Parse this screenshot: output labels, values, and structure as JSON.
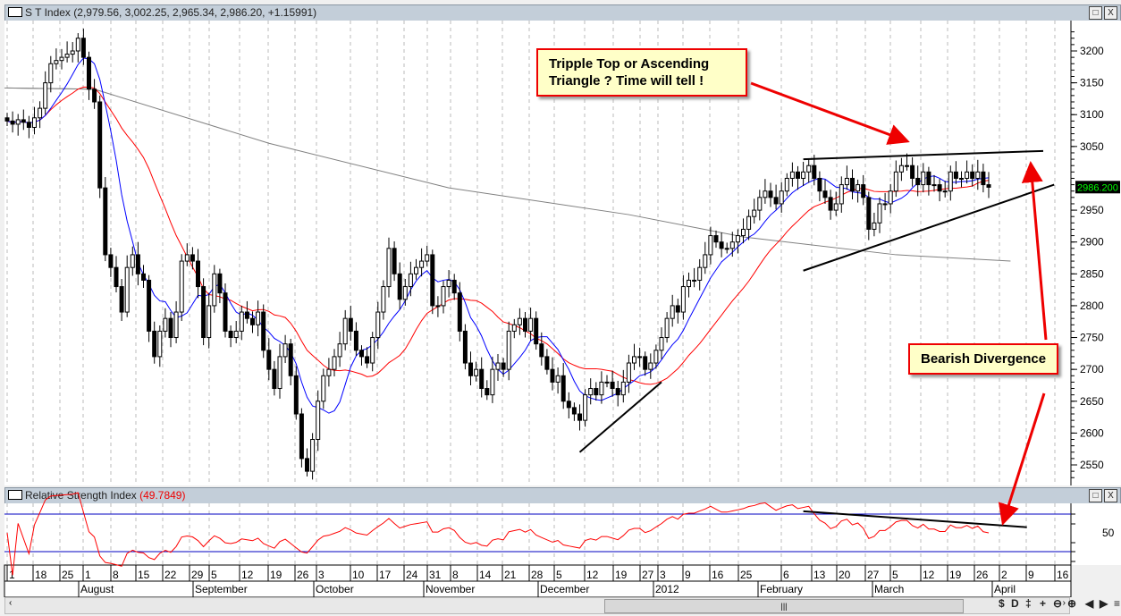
{
  "window": {
    "title": "S T Index",
    "ohlc_readout": "(2,979.56, 3,002.25, 2,965.34, 2,986.20, +1.15991)",
    "restore_label": "□",
    "close_label": "X"
  },
  "rsi_panel": {
    "title": "Relative Strength Index",
    "value": "(49.7849)",
    "axis_label": "50",
    "levels": [
      30,
      70
    ]
  },
  "annotations": {
    "top": "Tripple Top or Ascending Triangle ?  Time will tell !",
    "divergence": "Bearish Divergence"
  },
  "toolbar": {
    "icons": [
      "dollar-icon",
      "d-icon",
      "vertical-zoom-icon",
      "crosshair-icon",
      "zoom-out-icon",
      "zoom-in-icon",
      "scroll-left-icon",
      "scroll-right-icon",
      "menu-icon"
    ],
    "glyphs": [
      "$",
      "D",
      "‡",
      "+",
      "⊖",
      "⊕",
      "◀",
      "▶",
      "≡"
    ],
    "thumb_grip": "|||"
  },
  "colors": {
    "candle": "#000000",
    "ma_fast": "#0000ff",
    "ma_slow": "#ff0000",
    "ma_long": "#808080",
    "rsi": "#ff0000",
    "rsi_levels": "#0000c0",
    "last_price_bg": "#000000",
    "last_price_fg": "#00ff00",
    "annotation_border": "#ff0000",
    "annotation_bg": "#ffffc8"
  },
  "chart_data": {
    "type": "candlestick",
    "title": "S T Index",
    "ylim": [
      2520,
      3240
    ],
    "y_ticks": [
      "3200",
      "3150",
      "3100",
      "3050",
      "2950",
      "2900",
      "2850",
      "2800",
      "2750",
      "2700",
      "2650",
      "2600",
      "2550"
    ],
    "last_price": "2986.200",
    "day_ticks": [
      "1",
      "18",
      "25",
      "1",
      "8",
      "15",
      "22",
      "29",
      "5",
      "12",
      "19",
      "26",
      "3",
      "10",
      "17",
      "24",
      "31",
      "8",
      "14",
      "21",
      "28",
      "5",
      "12",
      "19",
      "27",
      "3",
      "9",
      "16",
      "25",
      "6",
      "13",
      "20",
      "27",
      "5",
      "12",
      "19",
      "26",
      "2",
      "9",
      "16"
    ],
    "month_ticks": [
      "August",
      "September",
      "October",
      "November",
      "December",
      "2012",
      "February",
      "March",
      "April"
    ],
    "closes": [
      3090,
      3085,
      3092,
      3088,
      3080,
      3095,
      3110,
      3150,
      3180,
      3185,
      3190,
      3195,
      3200,
      3220,
      3190,
      3140,
      3120,
      2985,
      2880,
      2860,
      2830,
      2790,
      2860,
      2880,
      2850,
      2840,
      2760,
      2720,
      2760,
      2780,
      2750,
      2790,
      2870,
      2880,
      2870,
      2830,
      2750,
      2800,
      2850,
      2820,
      2760,
      2750,
      2760,
      2790,
      2780,
      2770,
      2790,
      2730,
      2700,
      2670,
      2720,
      2740,
      2690,
      2630,
      2560,
      2540,
      2590,
      2650,
      2690,
      2700,
      2720,
      2740,
      2780,
      2760,
      2730,
      2720,
      2710,
      2750,
      2790,
      2830,
      2890,
      2850,
      2810,
      2830,
      2850,
      2860,
      2870,
      2880,
      2800,
      2800,
      2830,
      2840,
      2820,
      2760,
      2710,
      2690,
      2700,
      2670,
      2660,
      2700,
      2710,
      2700,
      2760,
      2770,
      2780,
      2760,
      2780,
      2740,
      2720,
      2700,
      2680,
      2690,
      2650,
      2640,
      2630,
      2620,
      2660,
      2670,
      2660,
      2680,
      2680,
      2670,
      2660,
      2680,
      2710,
      2720,
      2720,
      2700,
      2710,
      2730,
      2750,
      2780,
      2800,
      2790,
      2830,
      2840,
      2840,
      2860,
      2880,
      2910,
      2900,
      2890,
      2890,
      2900,
      2910,
      2920,
      2940,
      2950,
      2970,
      2980,
      2970,
      2960,
      2980,
      3000,
      3010,
      3000,
      3010,
      3020,
      3000,
      2980,
      2970,
      2950,
      2960,
      2990,
      3000,
      2980,
      2990,
      2970,
      2920,
      2930,
      2960,
      2960,
      2980,
      3010,
      3020,
      3020,
      3000,
      2990,
      3010,
      2990,
      2990,
      2980,
      2980,
      3010,
      3000,
      3000,
      3010,
      3000,
      3010,
      2990,
      2986
    ],
    "ma_long_anchors": [
      [
        0,
        3142
      ],
      [
        16,
        3140
      ],
      [
        48,
        3055
      ],
      [
        81,
        2985
      ],
      [
        114,
        2943
      ],
      [
        135,
        2908
      ],
      [
        163,
        2880
      ],
      [
        184,
        2870
      ]
    ],
    "trendlines": [
      {
        "from": [
          105,
          2570
        ],
        "to": [
          120,
          2680
        ]
      },
      {
        "from": [
          146,
          3030
        ],
        "to": [
          190,
          3043
        ]
      },
      {
        "from": [
          146,
          2855
        ],
        "to": [
          192,
          2990
        ]
      }
    ],
    "rsi_trendline": {
      "from": [
        146,
        73
      ],
      "to": [
        187,
        56
      ]
    }
  }
}
